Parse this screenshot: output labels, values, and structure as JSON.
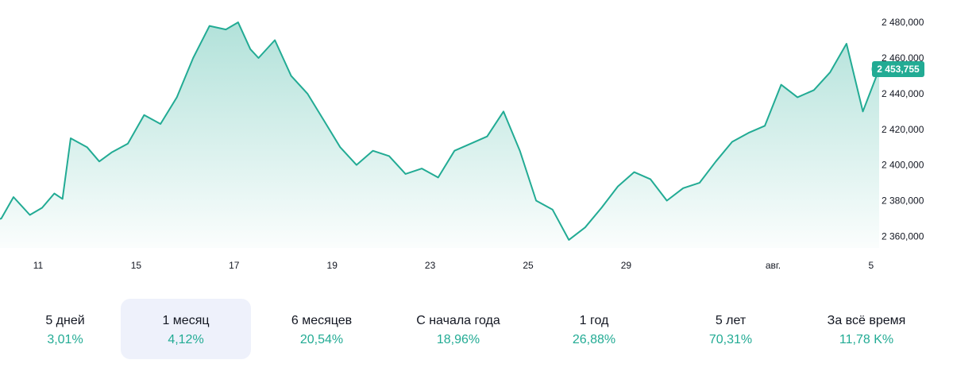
{
  "chart_data": {
    "type": "area",
    "current_price": 2453.755,
    "current_price_label": "2 453,755",
    "y_ticks": [
      2360,
      2380,
      2400,
      2420,
      2440,
      2460,
      2480
    ],
    "y_tick_labels": [
      "2 360,000",
      "2 380,000",
      "2 400,000",
      "2 420,000",
      "2 440,000",
      "2 460,000",
      "2 480,000"
    ],
    "x_ticks": [
      {
        "date": "2024-07-11",
        "label": "11"
      },
      {
        "date": "2024-07-15",
        "label": "15"
      },
      {
        "date": "2024-07-17",
        "label": "17"
      },
      {
        "date": "2024-07-19",
        "label": "19"
      },
      {
        "date": "2024-07-23",
        "label": "23"
      },
      {
        "date": "2024-07-25",
        "label": "25"
      },
      {
        "date": "2024-07-29",
        "label": "29"
      },
      {
        "date": "2024-08-01",
        "label": "авг."
      },
      {
        "date": "2024-08-05",
        "label": "5"
      }
    ],
    "series": [
      {
        "x": [
          "2024-07-10 12:00",
          "2024-07-10 18:00",
          "2024-07-11 00:00",
          "2024-07-11 08:00",
          "2024-07-11 14:00",
          "2024-07-11 20:00",
          "2024-07-12 00:00",
          "2024-07-12 04:00",
          "2024-07-12 12:00",
          "2024-07-12 18:00",
          "2024-07-15 00:00",
          "2024-07-15 08:00",
          "2024-07-15 16:00",
          "2024-07-16 00:00",
          "2024-07-16 08:00",
          "2024-07-16 16:00",
          "2024-07-17 00:00",
          "2024-07-17 08:00",
          "2024-07-17 14:00",
          "2024-07-17 20:00",
          "2024-07-18 00:00",
          "2024-07-18 08:00",
          "2024-07-18 16:00",
          "2024-07-19 00:00",
          "2024-07-19 08:00",
          "2024-07-19 16:00",
          "2024-07-22 00:00",
          "2024-07-22 08:00",
          "2024-07-22 16:00",
          "2024-07-23 00:00",
          "2024-07-23 08:00",
          "2024-07-23 16:00",
          "2024-07-24 00:00",
          "2024-07-24 08:00",
          "2024-07-24 16:00",
          "2024-07-25 00:00",
          "2024-07-25 08:00",
          "2024-07-25 16:00",
          "2024-07-26 00:00",
          "2024-07-26 08:00",
          "2024-07-26 16:00",
          "2024-07-29 00:00",
          "2024-07-29 08:00",
          "2024-07-29 16:00",
          "2024-07-30 00:00",
          "2024-07-30 08:00",
          "2024-07-30 16:00",
          "2024-07-31 00:00",
          "2024-07-31 08:00",
          "2024-07-31 16:00",
          "2024-08-01 00:00",
          "2024-08-01 08:00",
          "2024-08-01 16:00",
          "2024-08-02 00:00",
          "2024-08-02 08:00",
          "2024-08-02 16:00",
          "2024-08-05 00:00",
          "2024-08-05 08:00",
          "2024-08-05 16:00"
        ],
        "values": [
          2368,
          2370,
          2382,
          2372,
          2376,
          2384,
          2381,
          2415,
          2410,
          2402,
          2407,
          2412,
          2428,
          2423,
          2438,
          2460,
          2478,
          2476,
          2480,
          2465,
          2460,
          2470,
          2450,
          2440,
          2425,
          2410,
          2400,
          2408,
          2405,
          2395,
          2398,
          2393,
          2408,
          2412,
          2416,
          2430,
          2408,
          2380,
          2375,
          2358,
          2365,
          2376,
          2388,
          2396,
          2392,
          2380,
          2387,
          2390,
          2402,
          2413,
          2418,
          2422,
          2445,
          2438,
          2442,
          2452,
          2468,
          2430,
          2453.755
        ]
      }
    ],
    "colors": {
      "line": "#22ab94",
      "fill_top": "#22ab94",
      "price_badge": "#22ab94",
      "positive": "#22ab94"
    }
  },
  "periods": [
    {
      "label": "5 дней",
      "value": "3,01%",
      "active": false
    },
    {
      "label": "1 месяц",
      "value": "4,12%",
      "active": true
    },
    {
      "label": "6 месяцев",
      "value": "20,54%",
      "active": false
    },
    {
      "label": "С начала года",
      "value": "18,96%",
      "active": false
    },
    {
      "label": "1 год",
      "value": "26,88%",
      "active": false
    },
    {
      "label": "5 лет",
      "value": "70,31%",
      "active": false
    },
    {
      "label": "За всё время",
      "value": "11,78 K%",
      "active": false
    }
  ]
}
